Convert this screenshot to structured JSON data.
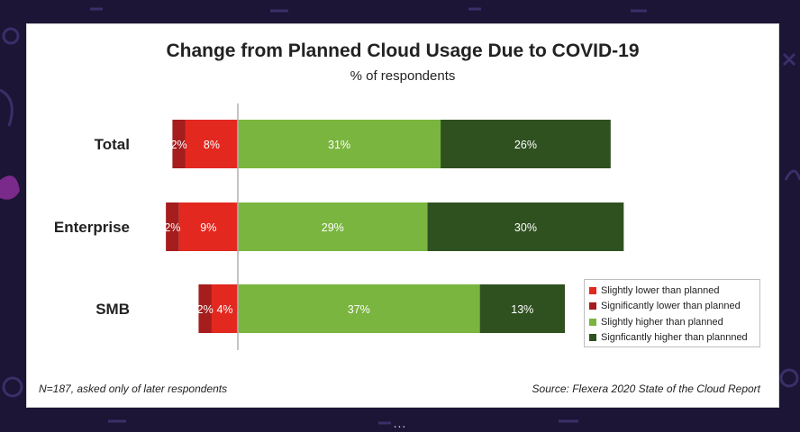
{
  "title": "Change from Planned Cloud Usage Due to COVID-19",
  "subtitle": "% of respondents",
  "footnote": "N=187, asked only of later respondents",
  "source": "Source: Flexera 2020 State of the Cloud Report",
  "pager_dots": "...",
  "colors": {
    "slightly_lower": "#e3281f",
    "significantly_lower": "#a51d1d",
    "slightly_higher": "#7ab53f",
    "significantly_higher": "#2f5120"
  },
  "chart_data": {
    "type": "bar",
    "orientation": "horizontal",
    "stacked": "diverging",
    "title": "Change from Planned Cloud Usage Due to COVID-19",
    "subtitle": "% of respondents",
    "categories": [
      "Total",
      "Enterprise",
      "SMB"
    ],
    "series": [
      {
        "name": "Slightly lower than planned",
        "key": "slightly_lower",
        "side": "negative",
        "values": [
          8,
          9,
          4
        ],
        "labels": [
          "8%",
          "9%",
          "4%"
        ]
      },
      {
        "name": "Significantly lower than planned",
        "key": "significantly_lower",
        "side": "negative",
        "values": [
          2,
          2,
          2
        ],
        "labels": [
          "2%",
          "2%",
          "2%"
        ]
      },
      {
        "name": "Slightly higher than planned",
        "key": "slightly_higher",
        "side": "positive",
        "values": [
          31,
          29,
          37
        ],
        "labels": [
          "31%",
          "29%",
          "37%"
        ]
      },
      {
        "name": "Signficantly higher than plannned",
        "key": "significantly_higher",
        "side": "positive",
        "values": [
          26,
          30,
          13
        ],
        "labels": [
          "26%",
          "30%",
          "13%"
        ]
      }
    ],
    "legend_position": "bottom-right",
    "grid": false
  }
}
